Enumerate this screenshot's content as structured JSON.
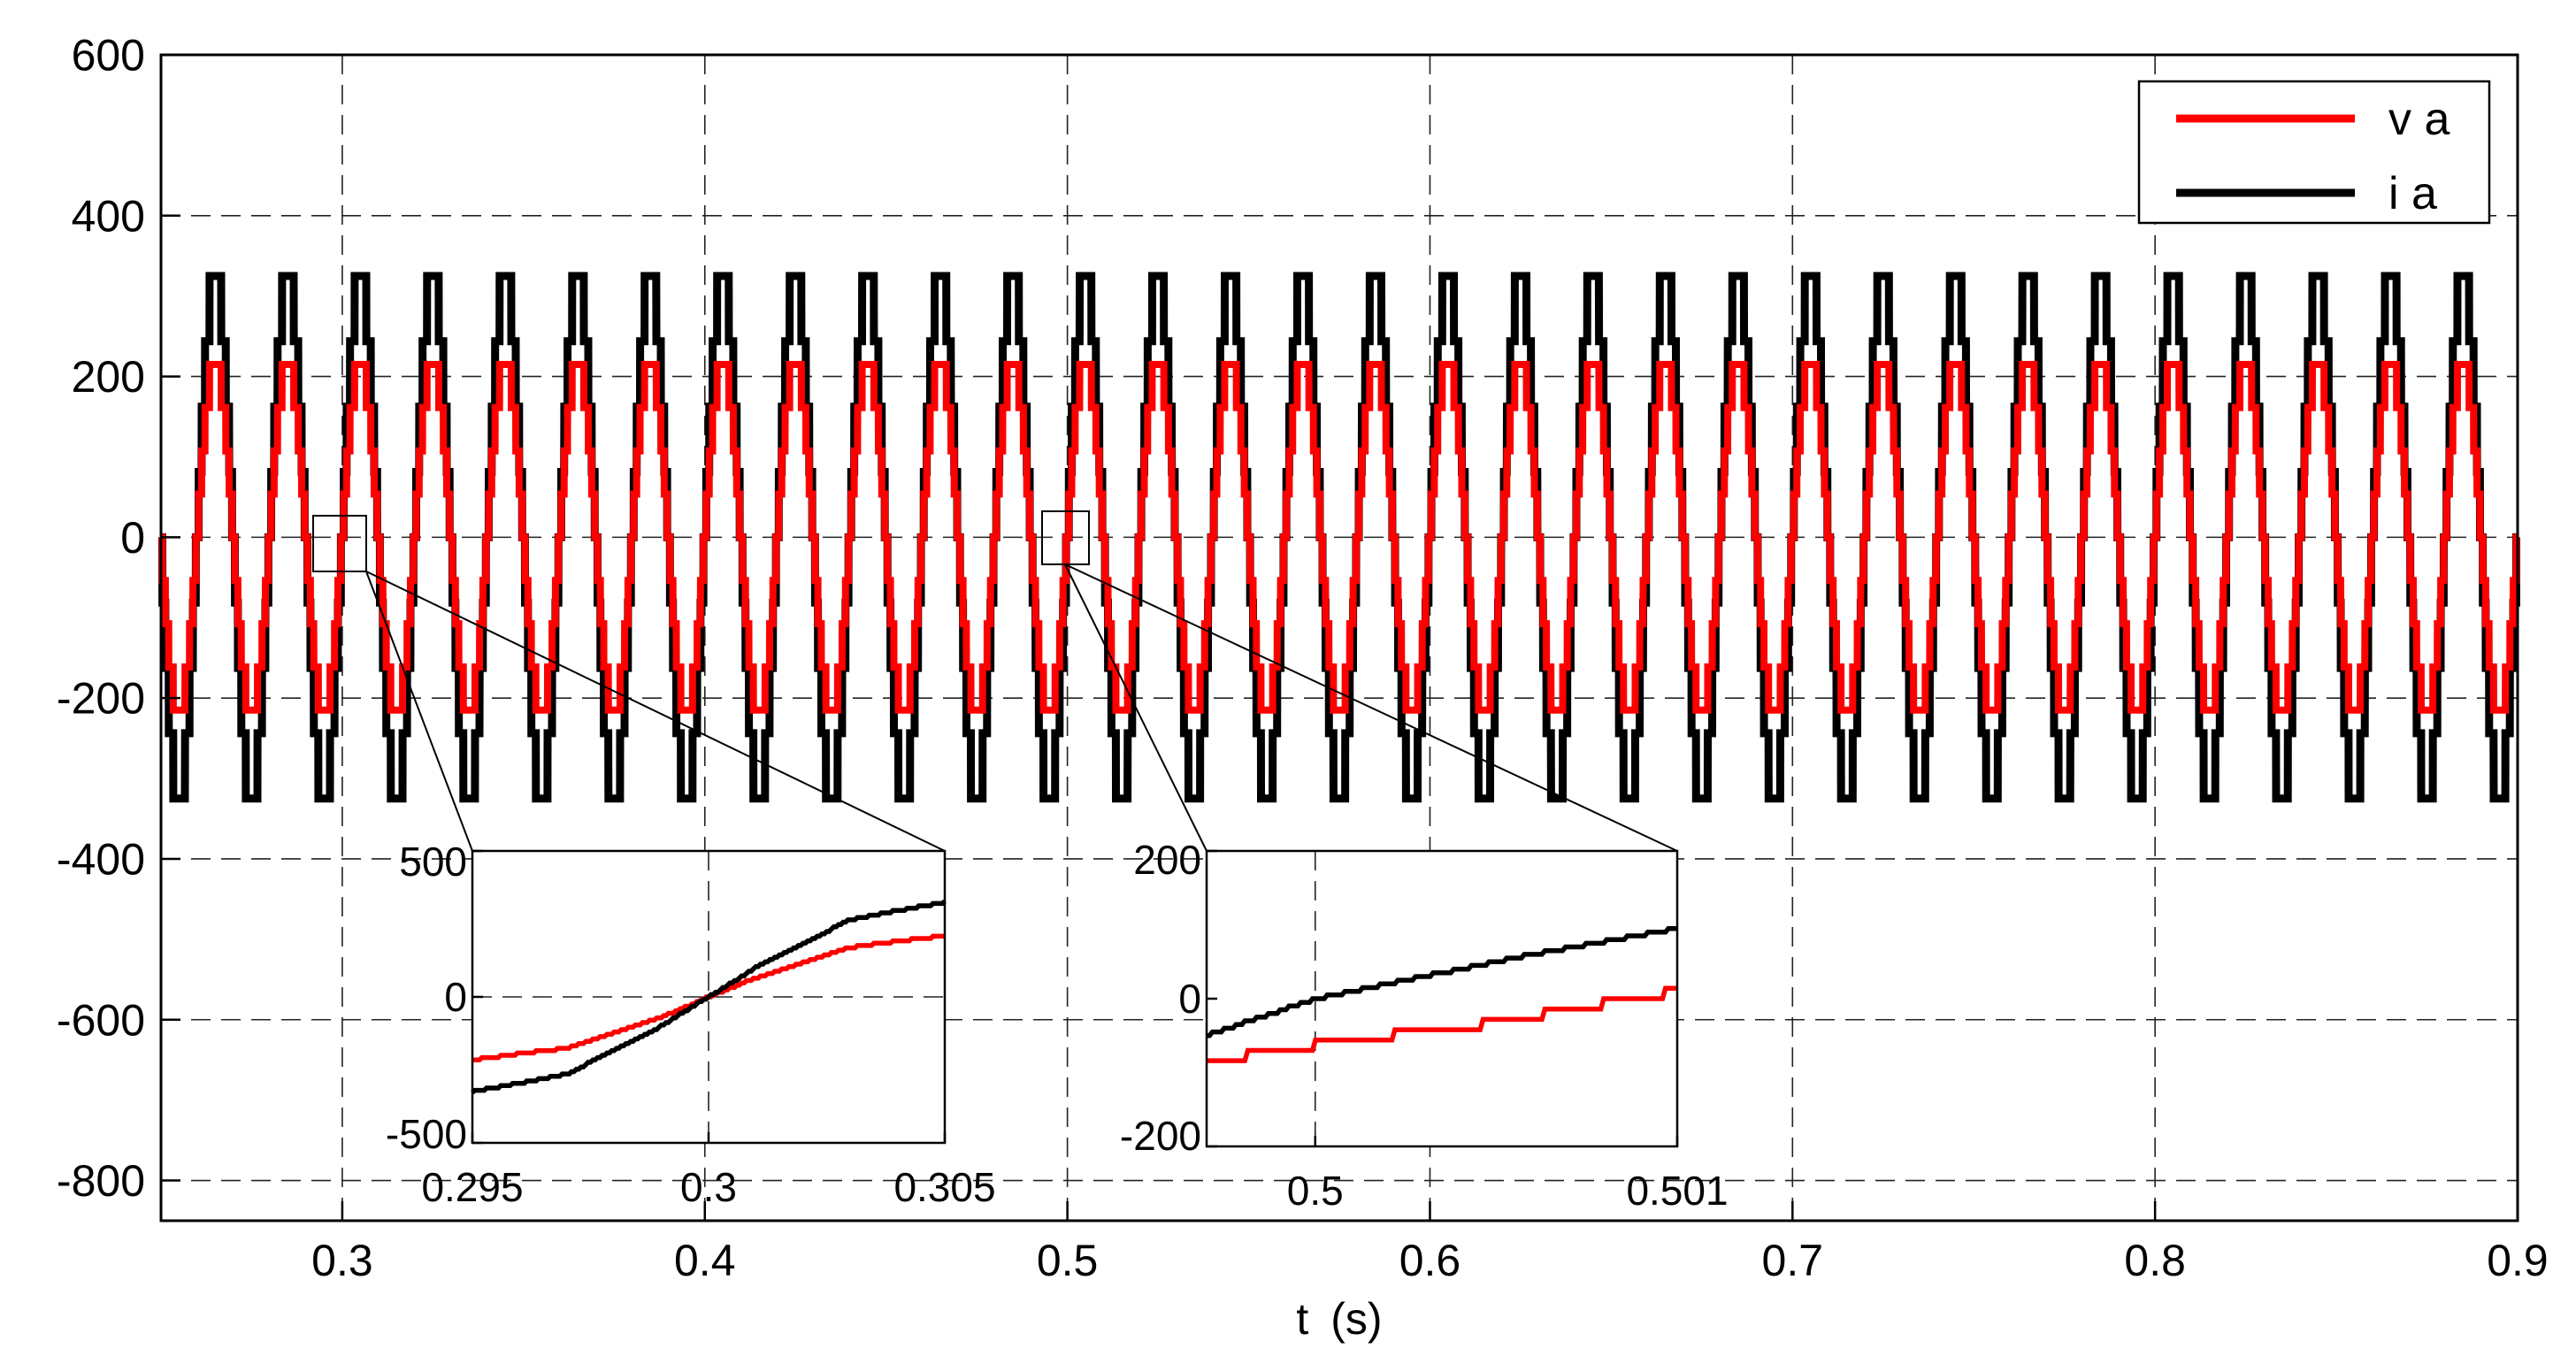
{
  "chart_data": [
    {
      "type": "line",
      "xlabel": "t (s)",
      "ylabel": "",
      "xlim": [
        0.25,
        0.9
      ],
      "ylim": [
        -850,
        600
      ],
      "xticks": [
        0.3,
        0.4,
        0.5,
        0.6,
        0.7,
        0.8,
        0.9
      ],
      "xtick_labels": [
        "0.3",
        "0.4",
        "0.5",
        "0.6",
        "0.7",
        "0.8",
        "0.9"
      ],
      "yticks": [
        -800,
        -600,
        -400,
        -200,
        0,
        200,
        400,
        600
      ],
      "ytick_labels": [
        "-800",
        "-600",
        "-400",
        "-200",
        "0",
        "200",
        "400",
        "600"
      ],
      "grid": true,
      "legend_position": "top-right",
      "frequency_hz": 50,
      "series": [
        {
          "name": "v a",
          "color": "#ff0000",
          "amplitude": 215,
          "phase_zero_time": 0.3,
          "stepped": true
        },
        {
          "name": "i a",
          "color": "#000000",
          "amplitude": 325,
          "phase_zero_time": 0.3,
          "stepped": true
        }
      ]
    },
    {
      "type": "line",
      "xlim": [
        0.295,
        0.305
      ],
      "ylim": [
        -500,
        500
      ],
      "xticks": [
        0.295,
        0.3,
        0.305
      ],
      "xtick_labels": [
        "0.295",
        "0.3",
        "0.305"
      ],
      "yticks": [
        -500,
        0,
        500
      ],
      "ytick_labels": [
        "-500",
        "0",
        "500"
      ],
      "series": [
        {
          "name": "v a",
          "color": "#ff0000",
          "x": [
            0.295,
            0.297,
            0.299,
            0.3,
            0.301,
            0.303,
            0.305
          ],
          "values": [
            -215,
            -175,
            -70,
            0,
            65,
            170,
            210
          ]
        },
        {
          "name": "i a",
          "color": "#000000",
          "x": [
            0.295,
            0.297,
            0.299,
            0.3,
            0.301,
            0.303,
            0.305
          ],
          "values": [
            -325,
            -265,
            -100,
            0,
            100,
            265,
            325
          ]
        }
      ]
    },
    {
      "type": "line",
      "xlim": [
        0.4997,
        0.501
      ],
      "ylim": [
        -200,
        200
      ],
      "xticks": [
        0.5,
        0.501
      ],
      "xtick_labels": [
        "0.5",
        "0.501"
      ],
      "yticks": [
        -200,
        0,
        200
      ],
      "ytick_labels": [
        "-200",
        "0",
        "200"
      ],
      "series": [
        {
          "name": "v a",
          "color": "#ff0000",
          "x": [
            0.4997,
            0.5001,
            0.5004,
            0.5007,
            0.501
          ],
          "values": [
            -85,
            -55,
            -40,
            -15,
            10
          ]
        },
        {
          "name": "i a",
          "color": "#000000",
          "x": [
            0.4997,
            0.5,
            0.5003,
            0.5006,
            0.501
          ],
          "values": [
            -50,
            0,
            30,
            60,
            95
          ]
        }
      ]
    }
  ]
}
